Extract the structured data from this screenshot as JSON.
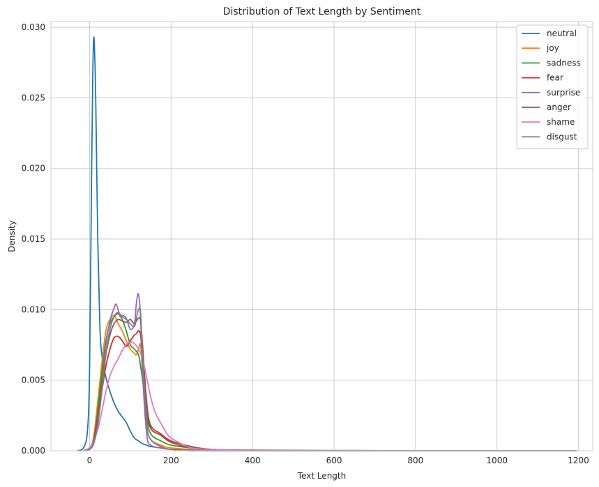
{
  "chart_data": {
    "type": "line",
    "title": "Distribution of Text Length by Sentiment",
    "xlabel": "Text Length",
    "ylabel": "Density",
    "xlim": [
      -95,
      1235
    ],
    "ylim": [
      0,
      0.0304
    ],
    "xticks": [
      0,
      200,
      400,
      600,
      800,
      1000,
      1200
    ],
    "xtick_labels": [
      "0",
      "200",
      "400",
      "600",
      "800",
      "1000",
      "1200"
    ],
    "yticks": [
      0,
      0.005,
      0.01,
      0.015,
      0.02,
      0.025,
      0.03
    ],
    "ytick_labels": [
      "0.000",
      "0.005",
      "0.010",
      "0.015",
      "0.020",
      "0.025",
      "0.030"
    ],
    "grid": true,
    "legend_position": "top-right",
    "series": [
      {
        "name": "neutral",
        "color": "#1f77b4",
        "x": [
          -30,
          -15,
          -5,
          0,
          5,
          8,
          10,
          12,
          15,
          20,
          25,
          30,
          40,
          50,
          60,
          70,
          80,
          90,
          100,
          110,
          120,
          130,
          140,
          150,
          175,
          200,
          250,
          300,
          400,
          600,
          800,
          1000,
          1195
        ],
        "y": [
          0,
          0.0002,
          0.0015,
          0.006,
          0.02,
          0.027,
          0.0292,
          0.0285,
          0.025,
          0.015,
          0.009,
          0.0068,
          0.0052,
          0.0042,
          0.0034,
          0.0028,
          0.0024,
          0.002,
          0.0014,
          0.0009,
          0.0007,
          0.0005,
          0.0004,
          0.0003,
          0.0002,
          0.0001,
          5e-05,
          3e-05,
          1e-05,
          0,
          0,
          0,
          0
        ]
      },
      {
        "name": "joy",
        "color": "#ff7f0e",
        "x": [
          -15,
          0,
          10,
          20,
          30,
          40,
          50,
          60,
          70,
          80,
          90,
          100,
          110,
          115,
          120,
          125,
          130,
          140,
          150,
          175,
          200,
          250,
          300,
          400,
          600,
          800,
          1000,
          1195
        ],
        "y": [
          0,
          0.0002,
          0.001,
          0.0035,
          0.0062,
          0.0085,
          0.0093,
          0.0096,
          0.009,
          0.0085,
          0.0078,
          0.0072,
          0.0069,
          0.0068,
          0.0072,
          0.0075,
          0.0055,
          0.0018,
          0.0008,
          0.0004,
          0.0002,
          0.0001,
          5e-05,
          0,
          0,
          0,
          0,
          0
        ]
      },
      {
        "name": "sadness",
        "color": "#2ca02c",
        "x": [
          -15,
          0,
          10,
          20,
          30,
          40,
          50,
          60,
          70,
          80,
          90,
          100,
          110,
          120,
          125,
          130,
          140,
          150,
          175,
          200,
          250,
          300,
          400,
          600,
          800,
          1000,
          1195
        ],
        "y": [
          0,
          0.0002,
          0.0008,
          0.0028,
          0.0055,
          0.0078,
          0.009,
          0.0095,
          0.0097,
          0.0093,
          0.0085,
          0.0075,
          0.0072,
          0.0068,
          0.006,
          0.005,
          0.0025,
          0.0012,
          0.0007,
          0.0004,
          0.0002,
          0.0001,
          0,
          0,
          0,
          0,
          0
        ]
      },
      {
        "name": "fear",
        "color": "#d62728",
        "x": [
          -15,
          0,
          10,
          20,
          30,
          40,
          50,
          60,
          70,
          80,
          90,
          100,
          110,
          115,
          120,
          125,
          130,
          140,
          150,
          175,
          200,
          250,
          300,
          400,
          600,
          800,
          1000,
          1195
        ],
        "y": [
          0,
          0.0002,
          0.0008,
          0.0022,
          0.0042,
          0.006,
          0.0072,
          0.008,
          0.0081,
          0.0078,
          0.0074,
          0.0078,
          0.0082,
          0.0083,
          0.0085,
          0.0082,
          0.0065,
          0.0032,
          0.0016,
          0.0011,
          0.0006,
          0.0002,
          0.0001,
          3e-05,
          0,
          0,
          0,
          0
        ]
      },
      {
        "name": "surprise",
        "color": "#9467bd",
        "x": [
          -15,
          0,
          10,
          20,
          30,
          40,
          50,
          60,
          65,
          70,
          75,
          80,
          90,
          100,
          110,
          115,
          120,
          125,
          130,
          140,
          150,
          175,
          200,
          250,
          300,
          400,
          600,
          800,
          1000,
          1195
        ],
        "y": [
          0,
          0.0001,
          0.0005,
          0.0018,
          0.0045,
          0.0075,
          0.0092,
          0.0101,
          0.0104,
          0.01,
          0.0095,
          0.0096,
          0.0094,
          0.0086,
          0.009,
          0.0105,
          0.0111,
          0.0095,
          0.0055,
          0.0012,
          0.0004,
          0.0002,
          0.0001,
          0,
          0,
          0,
          0,
          0,
          0,
          0
        ]
      },
      {
        "name": "anger",
        "color": "#8c564b",
        "x": [
          -15,
          0,
          10,
          20,
          30,
          40,
          50,
          60,
          70,
          80,
          90,
          100,
          110,
          120,
          125,
          130,
          140,
          150,
          175,
          200,
          250,
          300,
          400,
          600,
          800,
          1000,
          1195
        ],
        "y": [
          0,
          0.0002,
          0.0008,
          0.0025,
          0.0048,
          0.0068,
          0.0082,
          0.009,
          0.0093,
          0.0092,
          0.0091,
          0.0093,
          0.009,
          0.0094,
          0.0092,
          0.0075,
          0.0035,
          0.0018,
          0.0012,
          0.0007,
          0.0003,
          0.0001,
          4e-05,
          2e-05,
          0,
          0,
          0
        ]
      },
      {
        "name": "shame",
        "color": "#e377c2",
        "x": [
          -15,
          0,
          20,
          40,
          50,
          60,
          70,
          80,
          90,
          100,
          110,
          120,
          130,
          140,
          150,
          160,
          170,
          180,
          190,
          200,
          225,
          250,
          300,
          400,
          600,
          800,
          1000,
          1195
        ],
        "y": [
          0,
          0.0002,
          0.0015,
          0.0042,
          0.0053,
          0.006,
          0.0065,
          0.0071,
          0.0075,
          0.0077,
          0.0076,
          0.0072,
          0.0065,
          0.0052,
          0.0038,
          0.0028,
          0.0022,
          0.0017,
          0.0012,
          0.0009,
          0.0005,
          0.0002,
          0.0001,
          0,
          0,
          0,
          0,
          0
        ]
      },
      {
        "name": "disgust",
        "color": "#7f7f7f",
        "x": [
          -15,
          0,
          10,
          20,
          30,
          40,
          50,
          60,
          70,
          80,
          90,
          100,
          110,
          115,
          120,
          125,
          130,
          140,
          150,
          175,
          200,
          250,
          300,
          400,
          600,
          800,
          1000,
          1195
        ],
        "y": [
          0,
          0.0001,
          0.0006,
          0.0018,
          0.0042,
          0.0068,
          0.0086,
          0.0095,
          0.0098,
          0.0095,
          0.0093,
          0.009,
          0.0088,
          0.0094,
          0.01,
          0.0098,
          0.0068,
          0.002,
          0.0008,
          0.0003,
          0.0001,
          5e-05,
          0,
          0,
          0,
          0,
          0,
          0
        ]
      }
    ]
  }
}
